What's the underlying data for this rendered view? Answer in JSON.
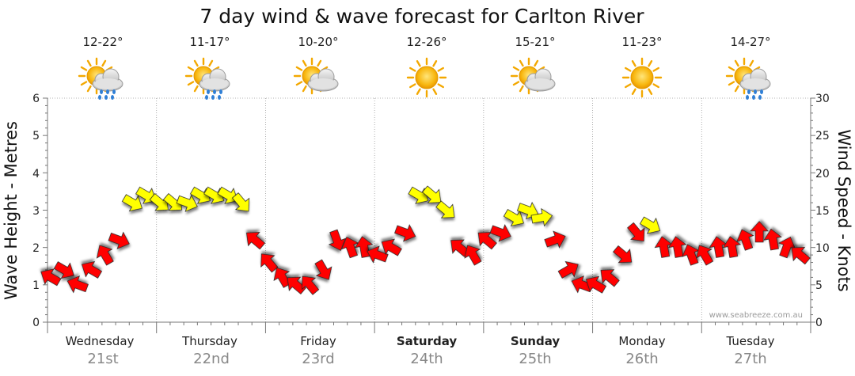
{
  "chart_data": {
    "type": "line",
    "title": "7 day wind & wave forecast for Carlton River",
    "ylabel_left": "Wave Height - Metres",
    "ylabel_right": "Wind Speed - Knots",
    "ylim_left": [
      0,
      6
    ],
    "ylim_right": [
      0,
      30
    ],
    "yticks_left": [
      "0",
      "1",
      "2",
      "3",
      "4",
      "5",
      "6"
    ],
    "yticks_right": [
      "0",
      "5",
      "10",
      "15",
      "20",
      "25",
      "30"
    ],
    "credit": "www.seabreeze.com.au",
    "legend": {
      "yellow_arrow": "#ffff00",
      "red_arrow": "#ff0000"
    },
    "days": [
      {
        "day": "Wednesday",
        "date": "21st",
        "temp": "12-22°",
        "weather": "partly-cloudy-rain-icon",
        "bold": false
      },
      {
        "day": "Thursday",
        "date": "22nd",
        "temp": "11-17°",
        "weather": "partly-cloudy-rain-icon",
        "bold": false
      },
      {
        "day": "Friday",
        "date": "23rd",
        "temp": "10-20°",
        "weather": "partly-cloudy-icon",
        "bold": false
      },
      {
        "day": "Saturday",
        "date": "24th",
        "temp": "12-26°",
        "weather": "sunny-icon",
        "bold": true
      },
      {
        "day": "Sunday",
        "date": "25th",
        "temp": "15-21°",
        "weather": "partly-cloudy-icon",
        "bold": true
      },
      {
        "day": "Monday",
        "date": "26th",
        "temp": "11-23°",
        "weather": "sunny-icon",
        "bold": false
      },
      {
        "day": "Tuesday",
        "date": "27th",
        "temp": "14-27°",
        "weather": "partly-cloudy-rain-icon",
        "bold": false
      }
    ],
    "series": [
      {
        "name": "Wind Speed (knots) with direction",
        "time_hours": [
          0,
          3,
          6,
          9,
          12,
          15,
          18,
          21,
          24,
          27,
          30,
          33,
          36,
          39,
          42,
          45,
          48,
          51,
          54,
          57,
          60,
          63,
          66,
          69,
          72,
          75,
          78,
          81,
          84,
          87,
          90,
          93,
          96,
          99,
          102,
          105,
          108,
          111,
          114,
          117,
          120,
          123,
          126,
          129,
          132,
          135,
          138,
          141,
          144,
          147,
          150,
          153,
          156,
          159,
          162,
          165
        ],
        "values": [
          6,
          7,
          5,
          7,
          9,
          11,
          16,
          17,
          16,
          16,
          16,
          17,
          17,
          17,
          16,
          11,
          8,
          6,
          5,
          5,
          7,
          11,
          10,
          10,
          9,
          10,
          12,
          17,
          17,
          15,
          10,
          9,
          11,
          12,
          14,
          15,
          14,
          11,
          7,
          5,
          5,
          6,
          9,
          12,
          13,
          10,
          10,
          9,
          9,
          10,
          10,
          11,
          12,
          11,
          10,
          9
        ],
        "direction_deg": [
          30,
          210,
          20,
          30,
          60,
          200,
          210,
          210,
          220,
          220,
          200,
          210,
          210,
          210,
          230,
          40,
          50,
          60,
          40,
          50,
          240,
          250,
          70,
          80,
          20,
          30,
          200,
          210,
          220,
          220,
          40,
          60,
          40,
          200,
          210,
          200,
          170,
          160,
          150,
          20,
          30,
          40,
          220,
          230,
          210,
          80,
          80,
          70,
          60,
          80,
          80,
          70,
          90,
          80,
          110,
          40
        ]
      }
    ]
  }
}
